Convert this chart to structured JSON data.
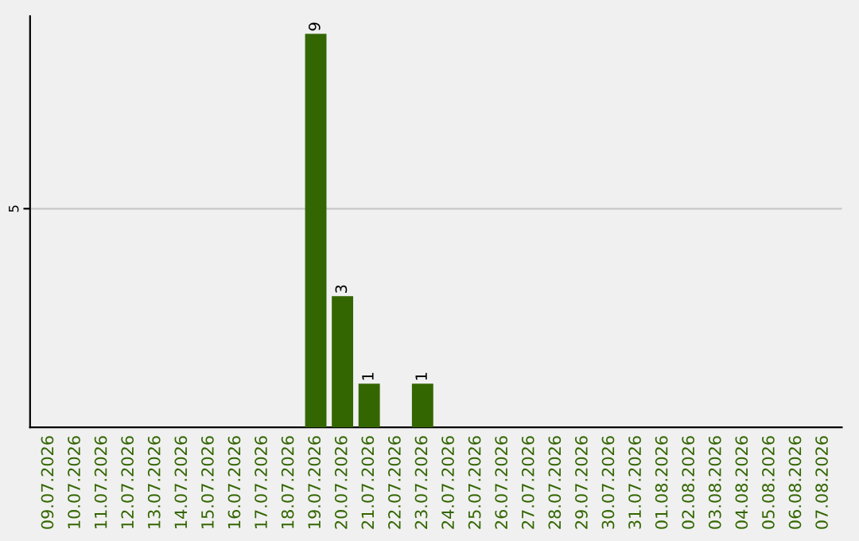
{
  "chart_data": {
    "type": "bar",
    "categories": [
      "09.07.2026",
      "10.07.2026",
      "11.07.2026",
      "12.07.2026",
      "13.07.2026",
      "14.07.2026",
      "15.07.2026",
      "16.07.2026",
      "17.07.2026",
      "18.07.2026",
      "19.07.2026",
      "20.07.2026",
      "21.07.2026",
      "22.07.2026",
      "23.07.2026",
      "24.07.2026",
      "25.07.2026",
      "26.07.2026",
      "27.07.2026",
      "28.07.2026",
      "29.07.2026",
      "30.07.2026",
      "31.07.2026",
      "01.08.2026",
      "02.08.2026",
      "03.08.2026",
      "04.08.2026",
      "05.08.2026",
      "06.08.2026",
      "07.08.2026"
    ],
    "values": [
      0,
      0,
      0,
      0,
      0,
      0,
      0,
      0,
      0,
      0,
      9,
      3,
      1,
      0,
      1,
      0,
      0,
      0,
      0,
      0,
      0,
      0,
      0,
      0,
      0,
      0,
      0,
      0,
      0,
      0
    ],
    "value_labels": [
      null,
      null,
      null,
      null,
      null,
      null,
      null,
      null,
      null,
      null,
      "9",
      "3",
      "1",
      null,
      "1",
      null,
      null,
      null,
      null,
      null,
      null,
      null,
      null,
      null,
      null,
      null,
      null,
      null,
      null,
      null
    ],
    "color": "#336600",
    "ylim": [
      0,
      9.4
    ],
    "yticks": [
      5
    ],
    "grid": "y"
  }
}
